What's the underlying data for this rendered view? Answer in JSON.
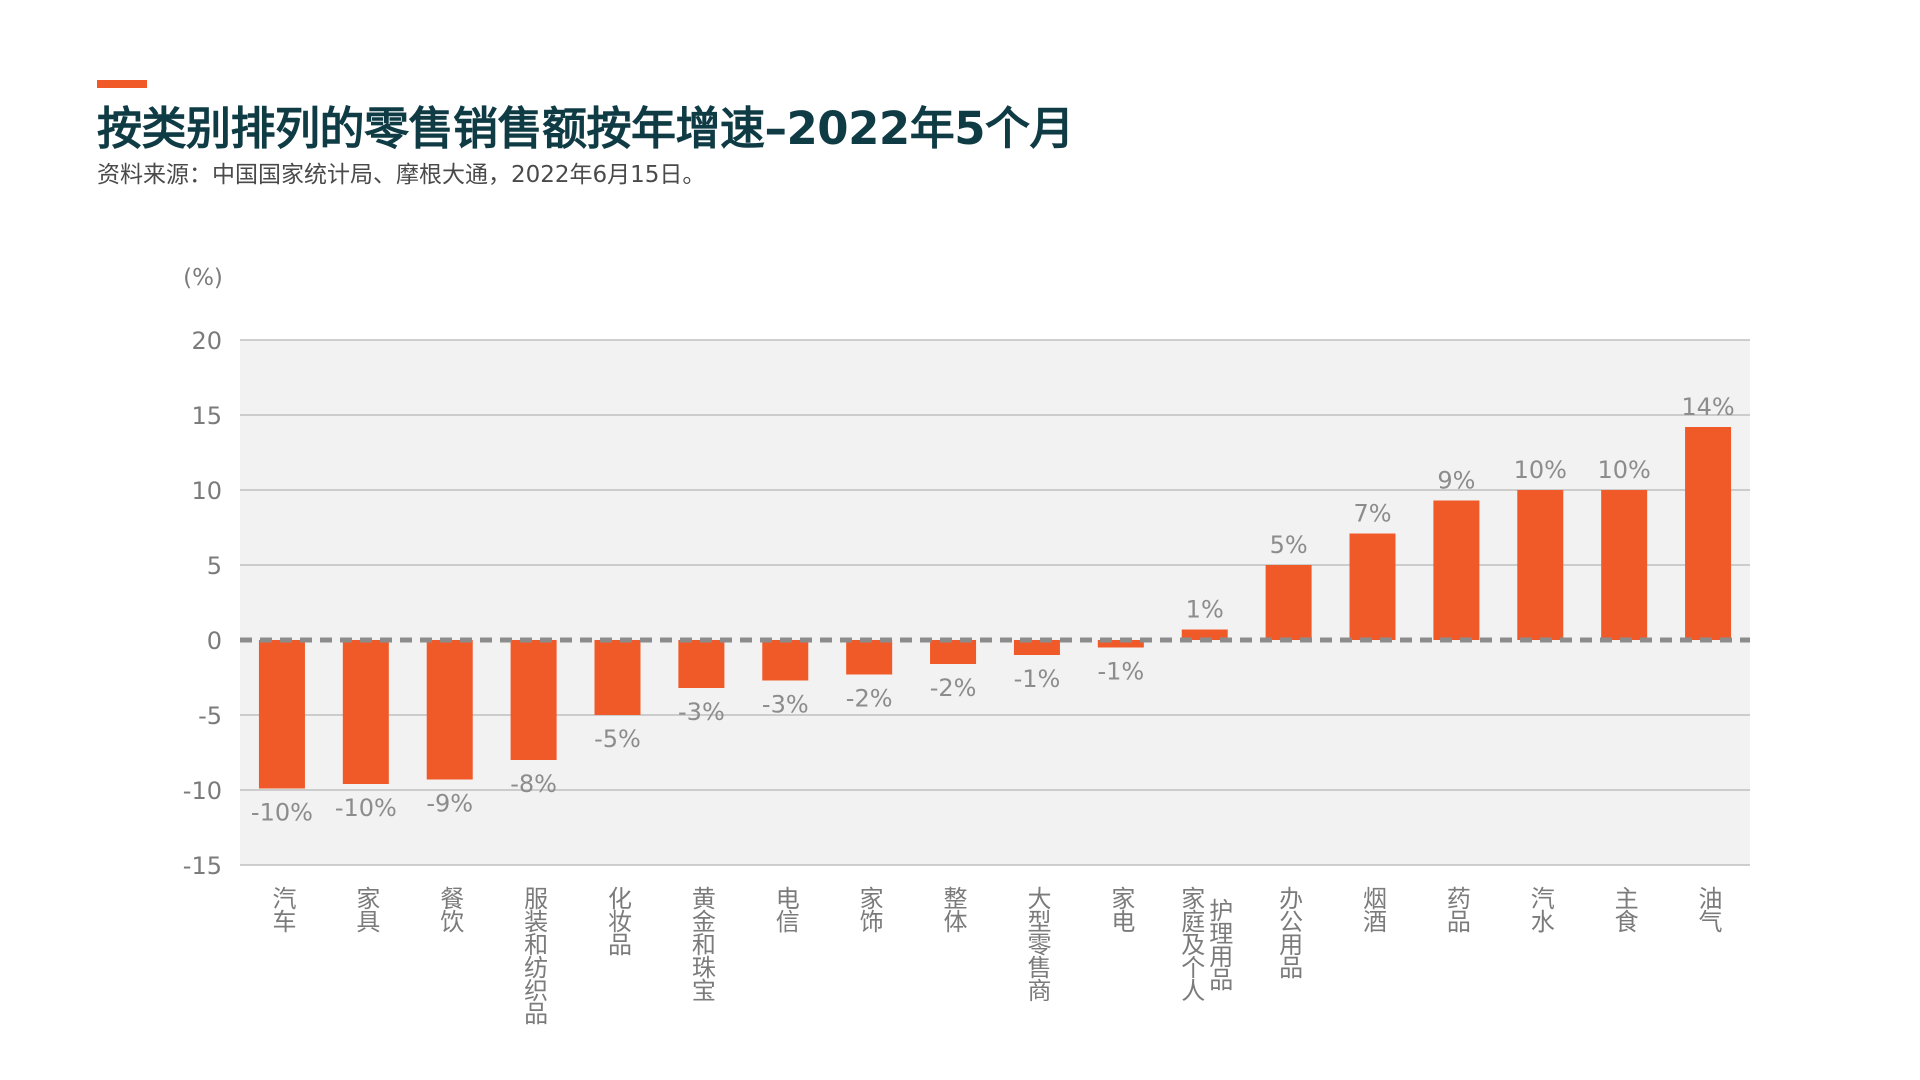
{
  "header": {
    "title": "按类别排列的零售销售额按年增速–2022年5个月",
    "subtitle": "资料来源：中国国家统计局、摩根大通，2022年6月15日。"
  },
  "colors": {
    "accent": "#f05a28",
    "bar": "#f05a28",
    "plot_bg": "#f2f2f2",
    "zero_line": "#8c8c8c"
  },
  "chart_data": {
    "type": "bar",
    "ylabel": "(%)",
    "ylim": [
      -15,
      20
    ],
    "yticks": [
      20,
      15,
      10,
      5,
      0,
      -5,
      -10,
      -15
    ],
    "grid": true,
    "categories": [
      [
        "汽车"
      ],
      [
        "家具"
      ],
      [
        "餐饮"
      ],
      [
        "服装和纺织品"
      ],
      [
        "化妆品"
      ],
      [
        "黄金和珠宝"
      ],
      [
        "电信"
      ],
      [
        "家饰"
      ],
      [
        "整体"
      ],
      [
        "大型零售商"
      ],
      [
        "家电"
      ],
      [
        "家庭及个人",
        "护理用品"
      ],
      [
        "办公用品"
      ],
      [
        "烟酒"
      ],
      [
        "药品"
      ],
      [
        "汽水"
      ],
      [
        "主食"
      ],
      [
        "油气"
      ]
    ],
    "values": [
      -9.9,
      -9.6,
      -9.3,
      -8.0,
      -5.0,
      -3.2,
      -2.7,
      -2.3,
      -1.6,
      -1.0,
      -0.5,
      0.7,
      5.0,
      7.1,
      9.3,
      10.0,
      10.0,
      14.2
    ],
    "labels": [
      "-10%",
      "-10%",
      "-9%",
      "-8%",
      "-5%",
      "-3%",
      "-3%",
      "-2%",
      "-2%",
      "-1%",
      "-1%",
      "1%",
      "5%",
      "7%",
      "9%",
      "10%",
      "10%",
      "14%"
    ]
  }
}
